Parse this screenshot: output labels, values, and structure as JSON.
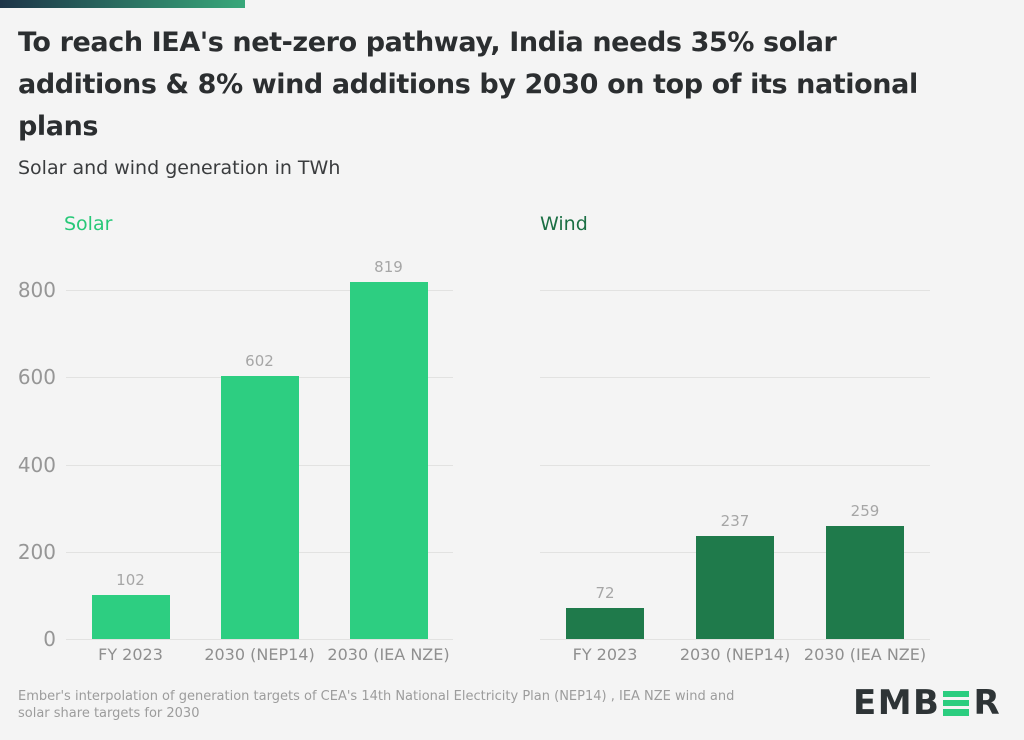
{
  "header": {
    "title_lines": [
      "To reach IEA's net-zero pathway, India needs 35% solar",
      "additions & 8% wind additions by 2030 on top of its national",
      "plans"
    ],
    "subtitle": "Solar and wind generation in TWh"
  },
  "footer": {
    "note_lines": [
      "Ember's interpolation of generation targets of CEA's 14th National Electricity Plan (NEP14) , IEA NZE wind and",
      "solar share targets for 2030"
    ],
    "logo": {
      "prefix": "EMB",
      "suffix": "R"
    }
  },
  "colors": {
    "background": "#f4f4f4",
    "accent_gradient_start": "#1d3448",
    "accent_gradient_end": "#38a87a",
    "title_text": "#2b2e30",
    "subtitle_text": "#3a3c3e",
    "grid": "#e2e2e1",
    "axis_text": "#969696",
    "value_text": "#a6a6a6",
    "category_text": "#8f8f8f",
    "footnote_text": "#9c9c9c",
    "logo_dark": "#2e3436",
    "logo_green": "#2bcd7f"
  },
  "chart_data": [
    {
      "type": "bar",
      "name": "Solar",
      "categories": [
        "FY 2023",
        "2030 (NEP14)",
        "2030 (IEA NZE)"
      ],
      "values": [
        102,
        602,
        819
      ],
      "unit": "TWh",
      "ylim": [
        0,
        800
      ],
      "yticks": [
        0,
        200,
        400,
        600,
        800
      ],
      "grid": true,
      "show_y_labels": true,
      "bar_color": "#2dce81",
      "legend_color": "#27c878",
      "value_labels": true,
      "legend_position": "top-left"
    },
    {
      "type": "bar",
      "name": "Wind",
      "categories": [
        "FY 2023",
        "2030 (NEP14)",
        "2030 (IEA NZE)"
      ],
      "values": [
        72,
        237,
        259
      ],
      "unit": "TWh",
      "ylim": [
        0,
        800
      ],
      "yticks": [
        0,
        200,
        400,
        600,
        800
      ],
      "grid": true,
      "show_y_labels": false,
      "bar_color": "#1f7a4b",
      "legend_color": "#1b6f44",
      "value_labels": true,
      "legend_position": "top-left"
    }
  ]
}
